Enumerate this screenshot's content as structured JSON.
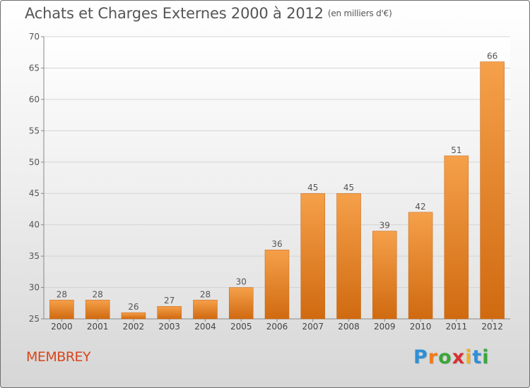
{
  "title": "Achats et Charges Externes 2000 à 2012",
  "subtitle": "(en milliers d'€)",
  "commune": "MEMBREY",
  "logo": {
    "letters": [
      "P",
      "r",
      "o",
      "x",
      "i",
      "t",
      "i"
    ],
    "colors": [
      "#2f8fd6",
      "#f07b1a",
      "#3aa63a",
      "#d82f2f",
      "#f0b020",
      "#2f8fd6",
      "#3aa63a"
    ]
  },
  "chart_data": {
    "type": "bar",
    "categories": [
      "2000",
      "2001",
      "2002",
      "2003",
      "2004",
      "2005",
      "2006",
      "2007",
      "2008",
      "2009",
      "2010",
      "2011",
      "2012"
    ],
    "values": [
      28,
      28,
      26,
      27,
      28,
      30,
      36,
      45,
      45,
      39,
      42,
      51,
      66
    ],
    "ylim": [
      25,
      70
    ],
    "yticks": [
      25,
      30,
      35,
      40,
      45,
      50,
      55,
      60,
      65,
      70
    ],
    "grid": true,
    "bar_color_top": "#f5a04a",
    "bar_color_bottom": "#d06a10"
  }
}
